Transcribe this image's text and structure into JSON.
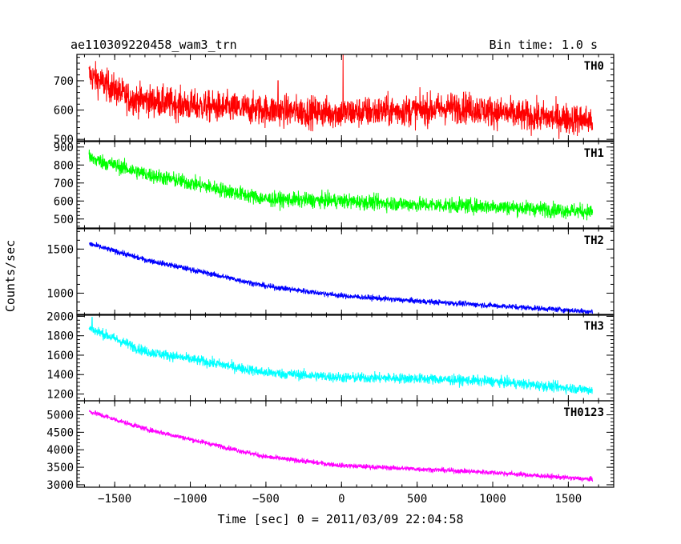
{
  "header": {
    "title": "ae110309220458_wam3_trn",
    "bin_time": "Bin time: 1.0 s"
  },
  "axes": {
    "ylabel": "Counts/sec",
    "xlabel": "Time [sec] 0 = 2011/03/09 22:04:58"
  },
  "chart_data": {
    "type": "line",
    "x_range": [
      -1750,
      1800
    ],
    "x_ticks": [
      -1500,
      -1000,
      -500,
      0,
      500,
      1000,
      1500
    ],
    "x_tick_labels": [
      "−1500",
      "−1000",
      "−500",
      "0",
      "500",
      "1000",
      "1500"
    ],
    "x_data_range": [
      -1670,
      1660
    ],
    "grid": false,
    "panels": [
      {
        "label": "TH0",
        "color": "#ff0000",
        "ylim": [
          495,
          790
        ],
        "y_ticks": [
          500,
          600,
          700
        ],
        "trend": [
          [
            -1670,
            720
          ],
          [
            -1400,
            640
          ],
          [
            -1000,
            615
          ],
          [
            -500,
            600
          ],
          [
            0,
            590
          ],
          [
            500,
            600
          ],
          [
            800,
            610
          ],
          [
            1200,
            580
          ],
          [
            1660,
            565
          ]
        ],
        "noise": 38,
        "spikes": [
          [
            10,
            790
          ],
          [
            -420,
            700
          ]
        ]
      },
      {
        "label": "TH1",
        "color": "#00ff00",
        "ylim": [
          450,
          930
        ],
        "y_ticks": [
          500,
          600,
          700,
          800,
          900
        ],
        "trend": [
          [
            -1670,
            840
          ],
          [
            -1300,
            750
          ],
          [
            -1000,
            700
          ],
          [
            -500,
            610
          ],
          [
            0,
            600
          ],
          [
            500,
            580
          ],
          [
            1000,
            570
          ],
          [
            1660,
            540
          ]
        ],
        "noise": 30,
        "spikes": []
      },
      {
        "label": "TH2",
        "color": "#0000ff",
        "ylim": [
          750,
          1730
        ],
        "y_ticks": [
          1000,
          1500
        ],
        "trend": [
          [
            -1670,
            1560
          ],
          [
            -1300,
            1380
          ],
          [
            -1000,
            1270
          ],
          [
            -500,
            1080
          ],
          [
            0,
            970
          ],
          [
            500,
            910
          ],
          [
            1000,
            860
          ],
          [
            1660,
            790
          ]
        ],
        "noise": 22,
        "spikes": []
      },
      {
        "label": "TH3",
        "color": "#00ffff",
        "ylim": [
          1130,
          2020
        ],
        "y_ticks": [
          1200,
          1400,
          1600,
          1800,
          2000
        ],
        "trend": [
          [
            -1670,
            1880
          ],
          [
            -1300,
            1640
          ],
          [
            -1000,
            1560
          ],
          [
            -500,
            1420
          ],
          [
            0,
            1370
          ],
          [
            500,
            1360
          ],
          [
            1000,
            1330
          ],
          [
            1660,
            1240
          ]
        ],
        "noise": 38,
        "spikes": [
          [
            -1650,
            1990
          ]
        ]
      },
      {
        "label": "TH0123",
        "color": "#ff00ff",
        "ylim": [
          2930,
          5400
        ],
        "y_ticks": [
          3000,
          3500,
          4000,
          4500,
          5000
        ],
        "trend": [
          [
            -1670,
            5100
          ],
          [
            -1300,
            4600
          ],
          [
            -1000,
            4300
          ],
          [
            -500,
            3800
          ],
          [
            0,
            3550
          ],
          [
            500,
            3450
          ],
          [
            1000,
            3350
          ],
          [
            1660,
            3150
          ]
        ],
        "noise": 50,
        "spikes": []
      }
    ]
  }
}
